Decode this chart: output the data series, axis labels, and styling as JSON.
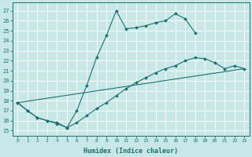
{
  "xlabel": "Humidex (Indice chaleur)",
  "bg_color": "#c8e8e8",
  "line_color": "#1a7070",
  "xlim": [
    -0.5,
    23.5
  ],
  "ylim": [
    14.5,
    27.8
  ],
  "xticks": [
    0,
    1,
    2,
    3,
    4,
    5,
    6,
    7,
    8,
    9,
    10,
    11,
    12,
    13,
    14,
    15,
    16,
    17,
    18,
    19,
    20,
    21,
    22,
    23
  ],
  "yticks": [
    15,
    16,
    17,
    18,
    19,
    20,
    21,
    22,
    23,
    24,
    25,
    26,
    27
  ],
  "series": [
    {
      "x": [
        0,
        1,
        2,
        3,
        4,
        5,
        6,
        7,
        8,
        9,
        10,
        11,
        12,
        13,
        14,
        15,
        16,
        17,
        18
      ],
      "y": [
        17.8,
        17.0,
        16.3,
        16.0,
        15.8,
        15.3,
        17.0,
        19.5,
        22.3,
        24.5,
        27.0,
        25.2,
        25.3,
        25.5,
        25.8,
        26.0,
        26.7,
        26.2,
        24.8
      ]
    },
    {
      "x": [
        0,
        1,
        2,
        3,
        4,
        5,
        6,
        7,
        8,
        9,
        10,
        11,
        12,
        13,
        14,
        15,
        16,
        17,
        18,
        19,
        20,
        21,
        22,
        23
      ],
      "y": [
        17.8,
        17.0,
        16.3,
        16.0,
        15.7,
        15.3,
        15.8,
        16.5,
        17.2,
        17.8,
        18.5,
        19.2,
        19.8,
        20.3,
        20.8,
        21.2,
        21.5,
        22.0,
        22.3,
        22.2,
        21.8,
        21.2,
        21.5,
        21.2
      ]
    },
    {
      "x": [
        0,
        23
      ],
      "y": [
        17.8,
        21.2
      ]
    }
  ],
  "marker_series": [
    0,
    1
  ],
  "figsize": [
    3.2,
    2.0
  ],
  "dpi": 100
}
